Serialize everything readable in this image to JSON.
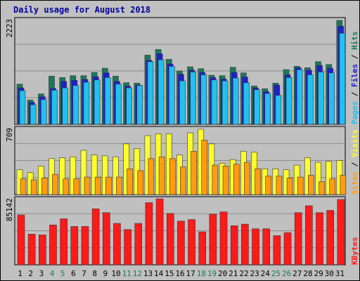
{
  "chart_data": {
    "type": "bar",
    "title": "Daily usage for August 2018",
    "categories": [
      "1",
      "2",
      "3",
      "4",
      "5",
      "6",
      "7",
      "8",
      "9",
      "10",
      "11",
      "12",
      "13",
      "14",
      "15",
      "16",
      "17",
      "18",
      "19",
      "20",
      "21",
      "22",
      "23",
      "24",
      "25",
      "26",
      "27",
      "28",
      "29",
      "30",
      "31"
    ],
    "weekend_days": [
      "4",
      "5",
      "11",
      "12",
      "18",
      "19",
      "25",
      "26"
    ],
    "panels": [
      {
        "name": "hits",
        "ymax_label": "2223",
        "ylim": [
          0,
          2223
        ],
        "right_label": [
          "Pages",
          "Files",
          "Hits"
        ],
        "series": [
          {
            "name": "Hits",
            "color": "#1b7a5a",
            "values": [
              860,
              520,
              650,
              1030,
              1000,
              1040,
              1040,
              1110,
              1200,
              1030,
              890,
              880,
              1480,
              1600,
              1390,
              1140,
              1230,
              1190,
              1050,
              1040,
              1220,
              1100,
              820,
              760,
              880,
              1170,
              1240,
              1210,
              1340,
              1280,
              2223
            ]
          },
          {
            "name": "Files",
            "color": "#1f1fd0",
            "values": [
              780,
              470,
              590,
              770,
              920,
              940,
              960,
              1020,
              1100,
              920,
              820,
              840,
              1370,
              1510,
              1290,
              1070,
              1160,
              1110,
              1000,
              970,
              1110,
              1010,
              780,
              700,
              840,
              1060,
              1210,
              1160,
              1260,
              1200,
              2100
            ]
          },
          {
            "name": "Pages",
            "color": "#22c0f0",
            "values": [
              720,
              420,
              530,
              730,
              780,
              830,
              900,
              950,
              1000,
              860,
              780,
              830,
              1340,
              1380,
              1240,
              930,
              1120,
              1060,
              950,
              930,
              990,
              890,
              740,
              660,
              620,
              1000,
              1170,
              1060,
              1120,
              1100,
              1950
            ]
          }
        ]
      },
      {
        "name": "visits",
        "ymax_label": "709",
        "ylim": [
          0,
          709
        ],
        "right_label": [
          "Sites",
          "Visits"
        ],
        "series": [
          {
            "name": "Visits",
            "color": "#ffff2a",
            "values": [
              270,
              240,
              310,
              390,
              400,
              410,
              480,
              430,
              420,
              410,
              550,
              500,
              640,
              660,
              660,
              430,
              670,
              709,
              550,
              340,
              380,
              470,
              460,
              280,
              280,
              270,
              320,
              400,
              350,
              360,
              370
            ]
          },
          {
            "name": "Sites",
            "color": "#ff9c12",
            "values": [
              170,
              160,
              180,
              220,
              170,
              170,
              190,
              190,
              190,
              190,
              280,
              260,
              390,
              410,
              390,
              300,
              470,
              590,
              320,
              310,
              330,
              350,
              280,
              200,
              200,
              180,
              190,
              210,
              140,
              170,
              210
            ]
          }
        ]
      },
      {
        "name": "kbytes",
        "ymax_label": "85142",
        "ylim": [
          0,
          85142
        ],
        "right_label": [
          "KBytes"
        ],
        "series": [
          {
            "name": "KBytes",
            "color": "#ff1a1a",
            "values": [
              65000,
              40000,
              39000,
              52000,
              60000,
              50000,
              50000,
              73000,
              68000,
              54000,
              46000,
              54000,
              81000,
              86000,
              67000,
              57000,
              59000,
              43000,
              66000,
              69000,
              51000,
              53000,
              47000,
              47000,
              38000,
              42000,
              68000,
              77000,
              68000,
              71000,
              85142
            ]
          }
        ]
      }
    ]
  }
}
